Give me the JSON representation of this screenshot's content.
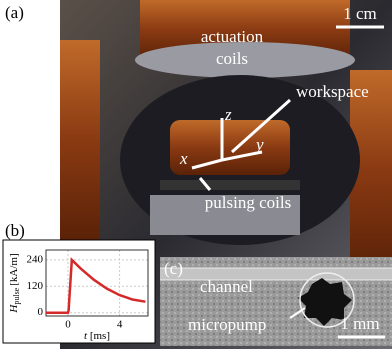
{
  "panel_a": {
    "label": "(a)",
    "scale": "1 cm",
    "actuation": [
      "actuation",
      "coils"
    ],
    "workspace": "workspace",
    "axes": {
      "z": "z",
      "x": "x",
      "y": "y"
    },
    "pulsing": "pulsing coils"
  },
  "panel_b": {
    "label": "(b)"
  },
  "panel_c": {
    "label": "(c)",
    "channel": "channel",
    "micropump": "micropump",
    "scale": "1 mm"
  },
  "chart_data": {
    "type": "line",
    "xlabel": {
      "symbol": "t",
      "unit": "[ms]"
    },
    "ylabel": {
      "symbol": "H",
      "subscript": "pulse",
      "unit": "[kA/m]"
    },
    "x": [
      -1.7,
      0,
      0.05,
      0.3,
      1,
      2,
      3,
      4,
      5,
      6
    ],
    "series": [
      {
        "color": "#d42a2a",
        "values": [
          0,
          0,
          10,
          240,
          200,
          150,
          110,
          80,
          60,
          50
        ]
      }
    ],
    "xlim": [
      -1.7,
      6.2
    ],
    "ylim": [
      -15,
      285
    ],
    "xticks": [
      0,
      4
    ],
    "yticks": [
      0,
      120,
      240
    ],
    "grid": true
  }
}
